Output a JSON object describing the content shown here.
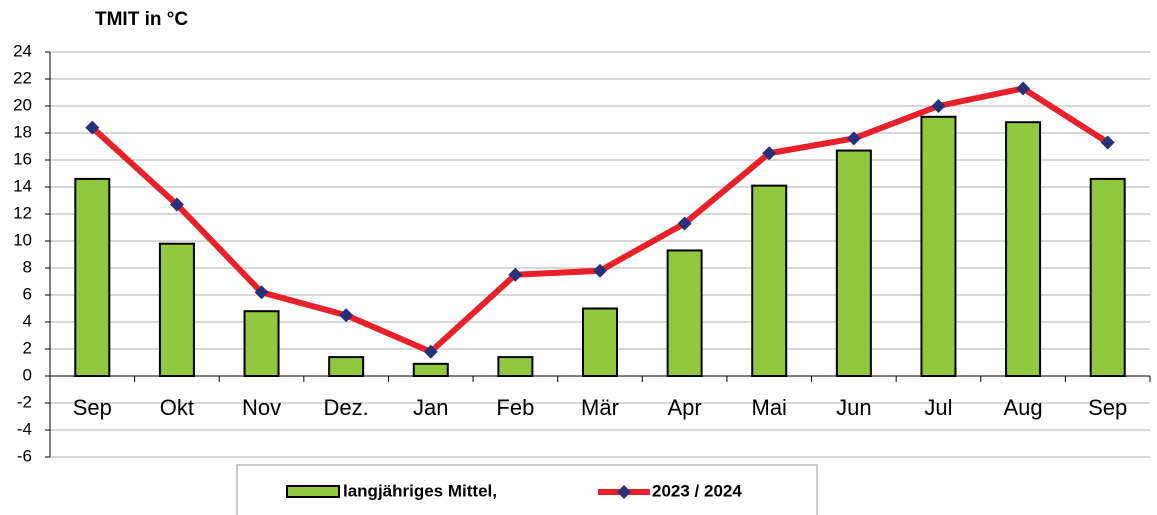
{
  "chart_data": {
    "type": "bar_line",
    "title": "TMIT in °C",
    "categories": [
      "Sep",
      "Okt",
      "Nov",
      "Dez.",
      "Jan",
      "Feb",
      "Mär",
      "Apr",
      "Mai",
      "Jun",
      "Jul",
      "Aug",
      "Sep"
    ],
    "series": [
      {
        "name": "langjähriges Mittel,",
        "type": "bar",
        "color": "#92c83e",
        "values": [
          14.6,
          9.8,
          4.8,
          1.4,
          0.9,
          1.4,
          5.0,
          9.3,
          14.1,
          16.7,
          19.2,
          18.8,
          14.6
        ]
      },
      {
        "name": "2023 / 2024",
        "type": "line",
        "color": "#e8202a",
        "marker_color": "#283078",
        "values": [
          18.4,
          12.7,
          6.2,
          4.5,
          1.8,
          7.5,
          7.8,
          11.3,
          16.5,
          17.6,
          20.0,
          21.3,
          17.3
        ]
      }
    ],
    "ylim": [
      -6,
      24
    ],
    "yticks": [
      -6,
      -4,
      -2,
      0,
      2,
      4,
      6,
      8,
      10,
      12,
      14,
      16,
      18,
      20,
      22,
      24
    ],
    "grid": true,
    "legend": "bottom"
  }
}
